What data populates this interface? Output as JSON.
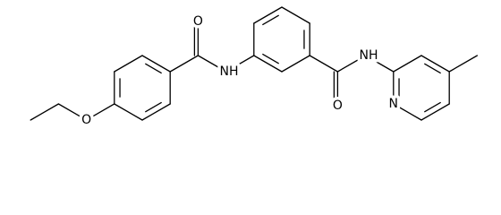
{
  "labels": [
    "O",
    "O",
    "NH",
    "O",
    "NH",
    "N"
  ]
}
